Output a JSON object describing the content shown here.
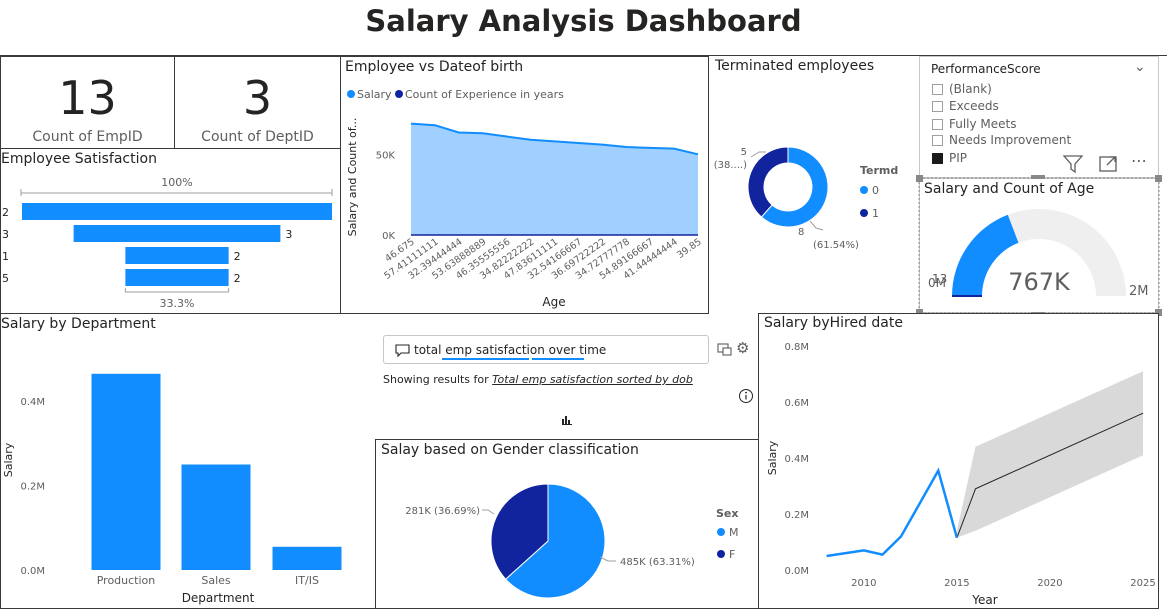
{
  "page": {
    "title": "Salary Analysis Dashboard"
  },
  "colors": {
    "primary": "#118DFF",
    "dark": "#12239E",
    "area": "#9FD0FF",
    "gray": "#D0D0D0",
    "band": "#D9D9D9"
  },
  "kpis": [
    {
      "value": "13",
      "label": "Count of EmpID"
    },
    {
      "value": "3",
      "label": "Count of DeptID"
    }
  ],
  "satisfaction": {
    "title": "Employee Satisfaction",
    "top_label": "100%",
    "bottom_label": "33.3%",
    "chart_data": {
      "type": "bar",
      "categories": [
        "2",
        "3",
        "1",
        "5"
      ],
      "values": [
        null,
        3,
        2,
        2
      ],
      "value_labels": [
        "",
        "3",
        "2",
        "2"
      ],
      "relative": [
        1.0,
        0.667,
        0.333,
        0.333
      ]
    }
  },
  "dob_chart": {
    "title": "Employee vs Dateof birth",
    "legend": [
      "Salary",
      "Count of Experience in years"
    ],
    "ylabel": "Salary and Count of...",
    "xlabel": "Age",
    "yticks": [
      "50K",
      "0K"
    ],
    "chart_data": {
      "type": "area",
      "x": [
        "46.675",
        "57.41111111",
        "32.39444444",
        "53.63888889",
        "46.35555556",
        "34.82222222",
        "47.83611111",
        "32.54166667",
        "36.69722222",
        "34.72777778",
        "54.89166667",
        "41.44444444",
        "39.85"
      ],
      "series": [
        {
          "name": "Salary",
          "values": [
            69000,
            68000,
            63500,
            63000,
            61000,
            59000,
            58000,
            57000,
            56000,
            54500,
            54000,
            53500,
            50000
          ]
        },
        {
          "name": "Count of Experience in years",
          "values": [
            1,
            1,
            1,
            1,
            1,
            1,
            1,
            1,
            1,
            1,
            1,
            1,
            1
          ]
        }
      ],
      "ylim": [
        0,
        70000
      ]
    }
  },
  "terminated": {
    "title": "Terminated employees",
    "legend_title": "Termd",
    "legend": [
      "0",
      "1"
    ],
    "label_small": [
      "5",
      "(38....)"
    ],
    "label_big": [
      "8",
      "(61.54%)"
    ],
    "chart_data": {
      "type": "pie",
      "categories": [
        "0",
        "1"
      ],
      "values": [
        8,
        5
      ]
    }
  },
  "perf_slicer": {
    "title": "PerformanceScore",
    "items": [
      {
        "label": "(Blank)",
        "checked": false
      },
      {
        "label": "Exceeds",
        "checked": false
      },
      {
        "label": "Fully Meets",
        "checked": false
      },
      {
        "label": "Needs Improvement",
        "checked": false
      },
      {
        "label": "PIP",
        "checked": true
      }
    ],
    "icons": [
      "filter-icon",
      "focus-mode-icon",
      "more-options-icon"
    ]
  },
  "gauge": {
    "title": "Salary and Count of Age",
    "value_label": "767K",
    "min_label": "0M",
    "max_label": "2M",
    "target_label": "13",
    "chart_data": {
      "type": "gauge",
      "value": 767000,
      "min": 0,
      "max": 2000000
    }
  },
  "dept_chart": {
    "title": "Salary by Department",
    "ylabel": "Salary",
    "xlabel": "Department",
    "yticks": [
      "0.4M",
      "0.2M",
      "0.0M"
    ],
    "chart_data": {
      "type": "bar",
      "categories": [
        "Production",
        "Sales",
        "IT/IS"
      ],
      "values": [
        465000,
        250000,
        55000
      ],
      "ylim": [
        0,
        500000
      ]
    }
  },
  "qa": {
    "query": "total emp satisfaction over time",
    "showing_prefix": "Showing results for ",
    "showing_link": "Total emp satisfaction sorted by dob"
  },
  "gender_chart": {
    "title": "Salay based on Gender classification",
    "legend_title": "Sex",
    "legend": [
      "M",
      "F"
    ],
    "label_f": "281K (36.69%)",
    "label_m": "485K (63.31%)",
    "chart_data": {
      "type": "pie",
      "categories": [
        "M",
        "F"
      ],
      "values": [
        485000,
        281000
      ]
    }
  },
  "hired_chart": {
    "title": "Salary byHired date",
    "ylabel": "Salary",
    "xlabel": "Year",
    "yticks": [
      "0.8M",
      "0.6M",
      "0.4M",
      "0.2M",
      "0.0M"
    ],
    "xticks": [
      "2010",
      "2015",
      "2020",
      "2025"
    ],
    "chart_data": {
      "type": "line",
      "x": [
        2008,
        2010,
        2011,
        2012,
        2014,
        2015
      ],
      "values": [
        50000,
        70000,
        55000,
        120000,
        355000,
        115000
      ],
      "forecast": {
        "x": [
          2015,
          2016,
          2025
        ],
        "values": [
          115000,
          290000,
          560000
        ],
        "upper": [
          140000,
          440000,
          710000
        ],
        "lower": [
          115000,
          140000,
          410000
        ]
      },
      "xlim": [
        2007,
        2025
      ],
      "ylim": [
        0,
        800000
      ]
    }
  }
}
